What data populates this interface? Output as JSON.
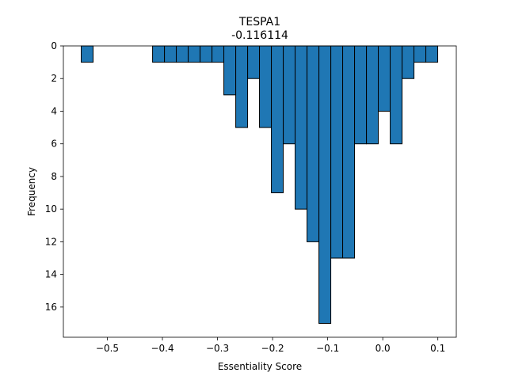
{
  "chart_data": {
    "type": "bar",
    "title": "TESPA1",
    "subtitle": "-0.116114",
    "xlabel": "Essentiality Score",
    "ylabel": "Frequency",
    "xlim": [
      -0.5798,
      0.1335
    ],
    "ylim": [
      17.85,
      0
    ],
    "y_inverted": true,
    "bar_color": "#1f77b4",
    "edge_color": "#000000",
    "bin_width": 0.02157,
    "x_ticks": [
      -0.5,
      -0.4,
      -0.3,
      -0.2,
      -0.1,
      0.0,
      0.1
    ],
    "x_tick_labels": [
      "−0.5",
      "−0.4",
      "−0.3",
      "−0.2",
      "−0.1",
      "0.0",
      "0.1"
    ],
    "y_ticks": [
      0,
      2,
      4,
      6,
      8,
      10,
      12,
      14,
      16
    ],
    "y_tick_labels": [
      "0",
      "2",
      "4",
      "6",
      "8",
      "10",
      "12",
      "14",
      "16"
    ],
    "grid": false,
    "bin_starts": [
      -0.5474,
      -0.4179,
      -0.3963,
      -0.3748,
      -0.3532,
      -0.3316,
      -0.31,
      -0.2885,
      -0.2669,
      -0.2453,
      -0.2238,
      -0.2022,
      -0.1806,
      -0.1591,
      -0.1375,
      -0.1159,
      -0.0943,
      -0.0728,
      -0.0512,
      -0.0296,
      -0.0081,
      0.0135,
      0.0351,
      0.0566,
      0.0782
    ],
    "values": [
      1,
      1,
      1,
      1,
      1,
      1,
      1,
      3,
      5,
      2,
      5,
      9,
      6,
      10,
      12,
      17,
      13,
      13,
      6,
      6,
      4,
      6,
      2,
      1,
      1
    ]
  }
}
